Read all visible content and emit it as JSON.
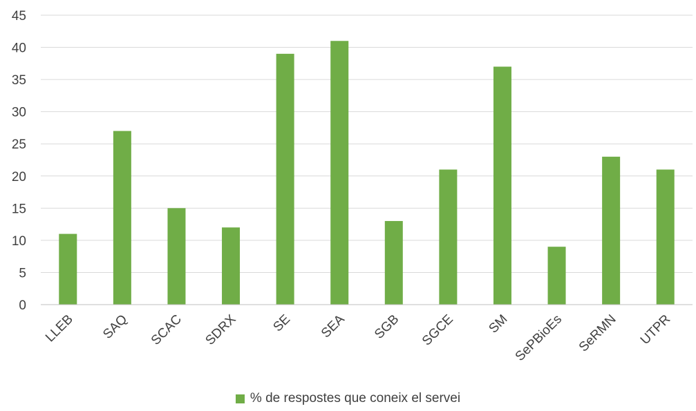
{
  "chart_data": {
    "type": "bar",
    "title": "",
    "xlabel": "",
    "ylabel": "",
    "categories": [
      "LLEB",
      "SAQ",
      "SCAC",
      "SDRX",
      "SE",
      "SEA",
      "SGB",
      "SGCE",
      "SM",
      "SePBioEs",
      "SeRMN",
      "UTPR"
    ],
    "series": [
      {
        "name": "% de respostes que coneix el servei",
        "values": [
          11,
          27,
          15,
          12,
          39,
          41,
          13,
          21,
          37,
          9,
          23,
          21
        ],
        "color": "#70AD47"
      }
    ],
    "ylim": [
      0,
      45
    ],
    "yticks": [
      0,
      5,
      10,
      15,
      20,
      25,
      30,
      35,
      40,
      45
    ],
    "grid": true,
    "legend_position": "bottom"
  }
}
